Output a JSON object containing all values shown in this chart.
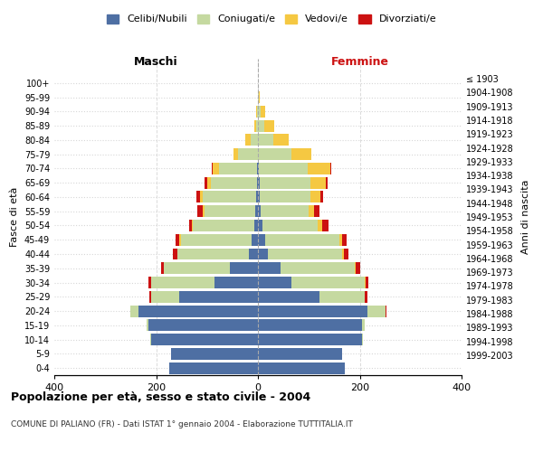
{
  "age_groups": [
    "0-4",
    "5-9",
    "10-14",
    "15-19",
    "20-24",
    "25-29",
    "30-34",
    "35-39",
    "40-44",
    "45-49",
    "50-54",
    "55-59",
    "60-64",
    "65-69",
    "70-74",
    "75-79",
    "80-84",
    "85-89",
    "90-94",
    "95-99",
    "100+"
  ],
  "birth_years": [
    "1999-2003",
    "1994-1998",
    "1989-1993",
    "1984-1988",
    "1979-1983",
    "1974-1978",
    "1969-1973",
    "1964-1968",
    "1959-1963",
    "1954-1958",
    "1949-1953",
    "1944-1948",
    "1939-1943",
    "1934-1938",
    "1929-1933",
    "1924-1928",
    "1919-1923",
    "1914-1918",
    "1909-1913",
    "1904-1908",
    "≤ 1903"
  ],
  "colors": {
    "celibi": "#4e6fa3",
    "coniugati": "#c5d9a0",
    "vedovi": "#f5c842",
    "divorziati": "#cc1111"
  },
  "maschi": {
    "celibi": [
      175,
      170,
      210,
      215,
      235,
      155,
      85,
      55,
      18,
      12,
      8,
      5,
      3,
      2,
      2,
      0,
      0,
      0,
      0,
      0,
      0
    ],
    "coniugati": [
      0,
      0,
      1,
      3,
      15,
      55,
      125,
      130,
      140,
      140,
      120,
      100,
      105,
      90,
      75,
      40,
      15,
      3,
      1,
      0,
      0
    ],
    "vedovi": [
      0,
      0,
      0,
      0,
      0,
      0,
      0,
      0,
      1,
      2,
      2,
      3,
      5,
      8,
      12,
      8,
      10,
      5,
      2,
      0,
      0
    ],
    "divorziati": [
      0,
      0,
      0,
      0,
      0,
      3,
      5,
      5,
      8,
      8,
      5,
      12,
      8,
      5,
      2,
      0,
      0,
      0,
      0,
      0,
      0
    ]
  },
  "femmine": {
    "celibi": [
      170,
      165,
      205,
      205,
      215,
      120,
      65,
      45,
      20,
      15,
      8,
      5,
      3,
      3,
      2,
      0,
      0,
      0,
      0,
      0,
      0
    ],
    "coniugati": [
      0,
      0,
      2,
      5,
      35,
      90,
      145,
      145,
      145,
      145,
      110,
      95,
      100,
      100,
      95,
      65,
      30,
      12,
      5,
      2,
      0
    ],
    "vedovi": [
      0,
      0,
      0,
      0,
      0,
      0,
      2,
      2,
      3,
      5,
      8,
      10,
      20,
      30,
      45,
      40,
      30,
      20,
      10,
      2,
      0
    ],
    "divorziati": [
      0,
      0,
      0,
      0,
      2,
      5,
      5,
      8,
      10,
      10,
      12,
      10,
      5,
      3,
      2,
      0,
      0,
      0,
      0,
      0,
      0
    ]
  },
  "xlim": 400,
  "title": "Popolazione per età, sesso e stato civile - 2004",
  "subtitle": "COMUNE DI PALIANO (FR) - Dati ISTAT 1° gennaio 2004 - Elaborazione TUTTITALIA.IT",
  "ylabel_left": "Fasce di età",
  "ylabel_right": "Anni di nascita",
  "label_maschi": "Maschi",
  "label_femmine": "Femmine",
  "legend_labels": [
    "Celibi/Nubili",
    "Coniugati/e",
    "Vedovi/e",
    "Divorziati/e"
  ]
}
